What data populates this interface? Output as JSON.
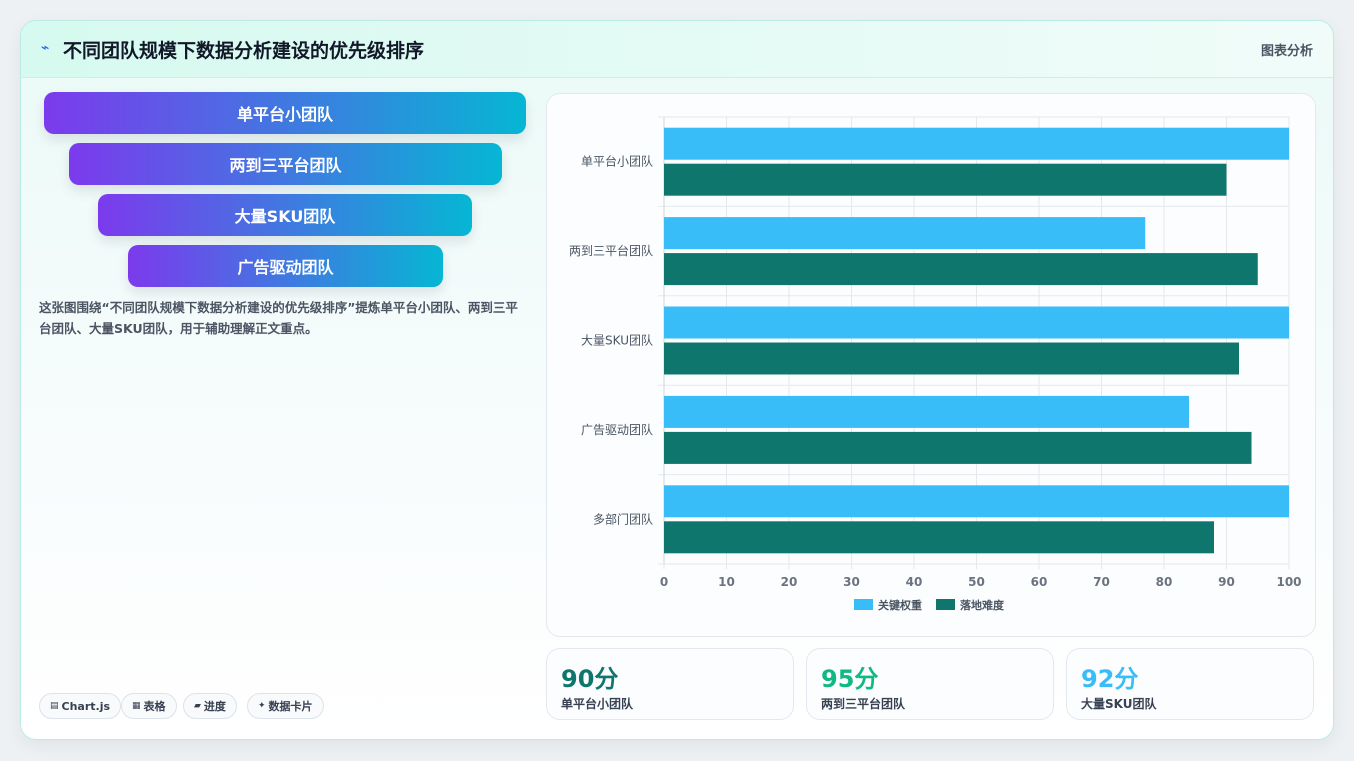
{
  "header": {
    "icon": "trend-icon",
    "title": "不同团队规模下数据分析建设的优先级排序",
    "right_label": "图表分析"
  },
  "funnel": {
    "items": [
      "单平台小团队",
      "两到三平台团队",
      "大量SKU团队",
      "广告驱动团队"
    ]
  },
  "description": "这张图围绕“不同团队规模下数据分析建设的优先级排序”提炼单平台小团队、两到三平台团队、大量SKU团队，用于辅助理解正文重点。",
  "tags": [
    {
      "icon": "chart-icon",
      "label": "Chart.js"
    },
    {
      "icon": "table-icon",
      "label": "表格"
    },
    {
      "icon": "progress-icon",
      "label": "进度"
    },
    {
      "icon": "sparkle-icon",
      "label": "数据卡片"
    }
  ],
  "stats": [
    {
      "value": "90分",
      "label": "单平台小团队",
      "color": "#0f766e"
    },
    {
      "value": "95分",
      "label": "两到三平台团队",
      "color": "#10b981"
    },
    {
      "value": "92分",
      "label": "大量SKU团队",
      "color": "#38bdf8"
    }
  ],
  "chart_data": {
    "type": "bar",
    "orientation": "horizontal",
    "categories": [
      "单平台小团队",
      "两到三平台团队",
      "大量SKU团队",
      "广告驱动团队",
      "多部门团队"
    ],
    "series": [
      {
        "name": "关键权重",
        "color": "#38bdf8",
        "values": [
          100,
          77,
          100,
          84,
          100
        ]
      },
      {
        "name": "落地难度",
        "color": "#0f766e",
        "values": [
          90,
          95,
          92,
          94,
          88
        ]
      }
    ],
    "xlim": [
      0,
      100
    ],
    "xticks": [
      0,
      10,
      20,
      30,
      40,
      50,
      60,
      70,
      80,
      90,
      100
    ],
    "grid": true,
    "legend": "bottom"
  }
}
